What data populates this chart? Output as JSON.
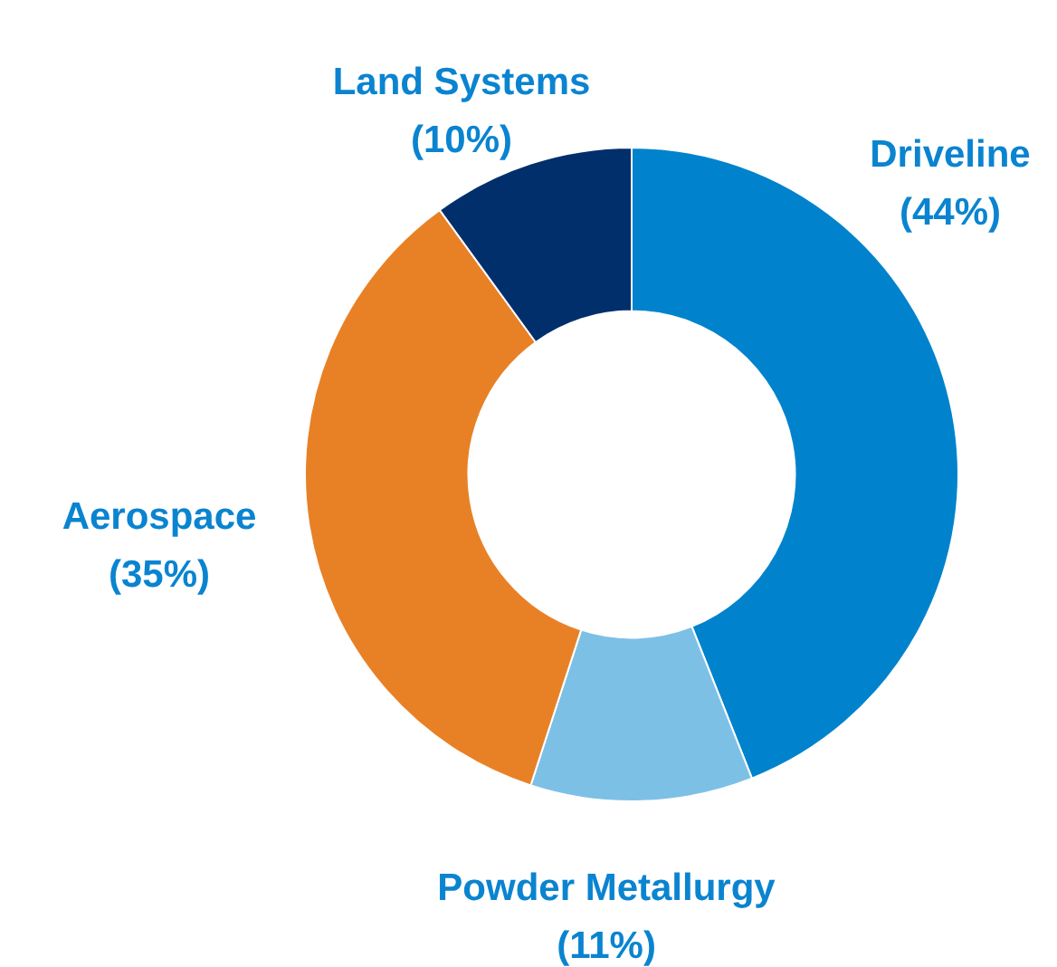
{
  "chart_data": {
    "type": "donut",
    "categories": [
      "Driveline",
      "Powder Metallurgy",
      "Aerospace",
      "Land Systems"
    ],
    "values": [
      44,
      11,
      35,
      10
    ],
    "colors": [
      "#0083cc",
      "#7dc0e6",
      "#e88126",
      "#002f6c"
    ],
    "value_labels": [
      "(44%)",
      "(11%)",
      "(35%)",
      "(10%)"
    ],
    "legend": false
  }
}
